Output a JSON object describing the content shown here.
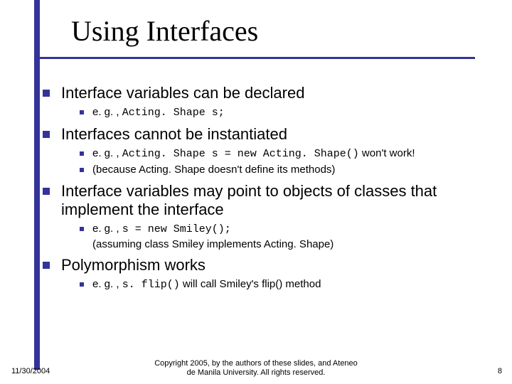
{
  "accent_color": "#333399",
  "title": "Using Interfaces",
  "sections": {
    "s1": {
      "heading": "Interface variables can be declared",
      "sub": {
        "a_pre": "e. g. , ",
        "a_code": "Acting. Shape s;"
      }
    },
    "s2": {
      "heading": "Interfaces cannot be instantiated",
      "sub": {
        "a_pre": "e. g. , ",
        "a_code": "Acting. Shape s = new Acting. Shape()",
        "a_post": " won't work!",
        "b": "(because Acting. Shape doesn't define its methods)"
      }
    },
    "s3": {
      "heading": "Interface variables may point to objects of classes that implement the interface",
      "sub": {
        "a_pre": "e. g. , ",
        "a_code": "s = new Smiley();",
        "b": "(assuming class Smiley implements Acting. Shape)"
      }
    },
    "s4": {
      "heading": "Polymorphism works",
      "sub": {
        "a_pre": "e. g. , ",
        "a_code": "s. flip()",
        "a_post": " will call Smiley's flip() method"
      }
    }
  },
  "footer": {
    "date": "11/30/2004",
    "copyright_l1": "Copyright 2005, by the authors of these slides, and Ateneo",
    "copyright_l2": "de Manila University. All rights reserved.",
    "page": "8"
  }
}
